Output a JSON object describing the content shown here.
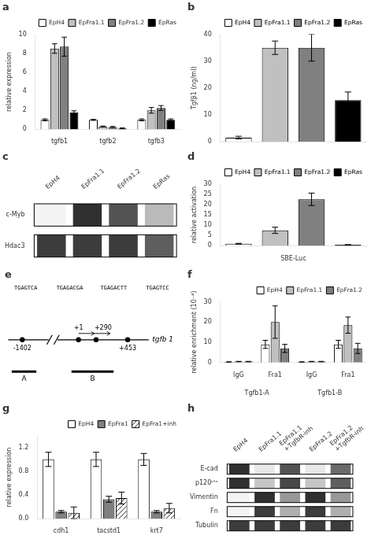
{
  "chart_data": [
    {
      "type": "bar",
      "title": "a",
      "categories": [
        "tgfb1",
        "tgfb2",
        "tgfb3"
      ],
      "series": [
        {
          "name": "EpH4",
          "color": "white",
          "values": [
            1.0,
            1.0,
            1.0
          ],
          "errors": [
            0.1,
            0.05,
            0.1
          ]
        },
        {
          "name": "EpFra1.1",
          "color": "#c0c0c0",
          "values": [
            8.5,
            0.3,
            2.0
          ],
          "errors": [
            0.5,
            0.05,
            0.3
          ]
        },
        {
          "name": "EpFra1.2",
          "color": "#808080",
          "values": [
            8.7,
            0.25,
            2.25
          ],
          "errors": [
            1.0,
            0.05,
            0.25
          ]
        },
        {
          "name": "EpRas",
          "color": "black",
          "values": [
            1.8,
            0.1,
            1.0
          ],
          "errors": [
            0.15,
            0.05,
            0.1
          ]
        }
      ],
      "ylabel": "relative expression",
      "ylim": [
        0,
        10
      ],
      "yticks": [
        0,
        2,
        4,
        6,
        8,
        10
      ],
      "grid": false,
      "legend": "upper right"
    },
    {
      "type": "bar",
      "title": "b",
      "categories": [
        "EpH4",
        "EpFra1.1",
        "EpFra1.2",
        "EpRas"
      ],
      "values": [
        1.5,
        35.0,
        35.0,
        15.5
      ],
      "errors": [
        0.5,
        2.5,
        5.0,
        3.0
      ],
      "colors": [
        "white",
        "#c0c0c0",
        "#808080",
        "black"
      ],
      "ylabel": "Tgfβ1 (ng/ml)",
      "ylim": [
        0,
        40
      ],
      "yticks": [
        0,
        10,
        20,
        30,
        40
      ],
      "grid": false,
      "legend": "upper right",
      "tick_labels": "y"
    },
    {
      "type": "heatmap",
      "title": "c",
      "categories": [
        "EpH4",
        "EpFra1.1",
        "EpFra1.2",
        "EpRas"
      ],
      "rows": [
        "c-Myb",
        "Hdac3"
      ],
      "cells": [
        [
          0.05,
          0.9,
          0.75,
          0.3
        ],
        [
          0.85,
          0.85,
          0.85,
          0.7
        ]
      ]
    },
    {
      "type": "bar",
      "title": "d",
      "categories": [
        "EpH4",
        "EpFra1.1",
        "EpFra1.2",
        "EpRas"
      ],
      "values": [
        1.0,
        7.5,
        22.5,
        0.5
      ],
      "errors": [
        0.2,
        1.5,
        3.0,
        0.1
      ],
      "colors": [
        "white",
        "#c0c0c0",
        "#808080",
        "black"
      ],
      "xlabel": "SBE-Luc",
      "ylabel": "relative activation",
      "ylim": [
        0,
        30
      ],
      "yticks": [
        0,
        5,
        10,
        15,
        20,
        25,
        30
      ],
      "grid": false,
      "legend": "upper right",
      "tick_labels": "y"
    },
    {
      "type": "diagram",
      "title": "e",
      "annotations": [
        "tgfb 1",
        "-1402",
        "+1",
        "+290",
        "+453",
        "TGAGTCA",
        "TGAGACGA",
        "TGAGACTT",
        "TGAGTCC",
        "A",
        "B"
      ]
    },
    {
      "type": "bar",
      "title": "f",
      "categories": [
        "IgG",
        "Fra1",
        "IgG",
        "Fra1"
      ],
      "annotations": [
        "Tgfb1-A",
        "Tgfb1-B"
      ],
      "series": [
        {
          "name": "EpH4",
          "color": "white",
          "values": [
            0.3,
            9.0,
            0.3,
            9.0
          ],
          "errors": [
            0.1,
            2.0,
            0.1,
            2.0
          ]
        },
        {
          "name": "EpFra1.1",
          "color": "#c0c0c0",
          "values": [
            0.5,
            20.0,
            0.5,
            18.5
          ],
          "errors": [
            0.1,
            8.0,
            0.1,
            4.0
          ]
        },
        {
          "name": "EpFra1.2",
          "color": "#808080",
          "values": [
            0.5,
            7.0,
            0.5,
            7.0
          ],
          "errors": [
            0.1,
            2.0,
            0.1,
            2.5
          ]
        }
      ],
      "ylabel": "relative enrichment (10⁻⁴)",
      "ylim": [
        0,
        30
      ],
      "yticks": [
        0,
        10,
        20,
        30
      ],
      "grid": false,
      "legend": "upper right"
    },
    {
      "type": "bar",
      "title": "g",
      "categories": [
        "cdh1",
        "tacstd1",
        "krt7"
      ],
      "series": [
        {
          "name": "EpH4",
          "color": "white",
          "values": [
            1.0,
            1.0,
            1.0
          ],
          "errors": [
            0.12,
            0.12,
            0.1
          ]
        },
        {
          "name": "EpFra1",
          "color": "#808080",
          "values": [
            0.12,
            0.33,
            0.12
          ],
          "errors": [
            0.02,
            0.05,
            0.02
          ]
        },
        {
          "name": "EpFra1+inh",
          "color": "white",
          "values": [
            0.1,
            0.35,
            0.18
          ],
          "errors": [
            0.1,
            0.1,
            0.08
          ]
        }
      ],
      "ylabel": "relative expression",
      "ylim": [
        0,
        1.4
      ],
      "yticks": [
        {
          "value": 0,
          "label": "0.0"
        },
        0.4,
        0.8,
        1.2
      ],
      "grid": false,
      "legend": "upper right"
    },
    {
      "type": "heatmap",
      "title": "h",
      "categories": [
        "EpH4",
        "EpFra1.1",
        "EpFra1.1\n+TgfbR-inh",
        "EpFra1.2",
        "EpFra1.2\n+TgfbR-inh"
      ],
      "rows": [
        "E-cad",
        "p120ᶜᵗⁿ",
        "Vimentin",
        "Fn",
        "Tubulin"
      ],
      "cells": [
        [
          0.9,
          0.1,
          0.75,
          0.1,
          0.65
        ],
        [
          0.9,
          0.25,
          0.8,
          0.25,
          0.7
        ],
        [
          0.05,
          0.9,
          0.45,
          0.9,
          0.45
        ],
        [
          0.05,
          0.85,
          0.35,
          0.85,
          0.35
        ],
        [
          0.85,
          0.85,
          0.85,
          0.85,
          0.85
        ]
      ]
    }
  ]
}
